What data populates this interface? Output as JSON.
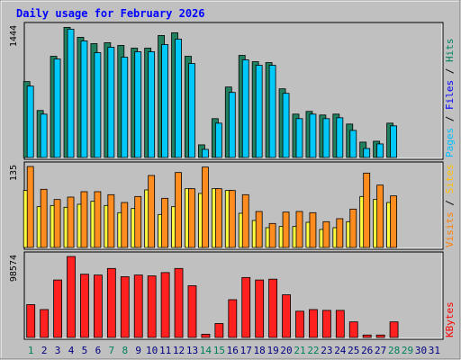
{
  "chart_data": {
    "type": "bar",
    "title": "Daily usage for February 2026",
    "days": [
      "1",
      "2",
      "3",
      "4",
      "5",
      "6",
      "7",
      "8",
      "9",
      "10",
      "11",
      "12",
      "13",
      "14",
      "15",
      "16",
      "17",
      "18",
      "19",
      "20",
      "21",
      "22",
      "23",
      "24",
      "25",
      "26",
      "27",
      "28",
      "29",
      "30",
      "31"
    ],
    "weekend_days": [
      "1",
      "7",
      "8",
      "14",
      "15",
      "21",
      "22",
      "28",
      "29"
    ],
    "panels": [
      {
        "name": "hits-files-pages",
        "max_label": "1444",
        "max": 1444,
        "legend": [
          {
            "text": "Hits",
            "color": "#00805c"
          },
          {
            "text": "Files",
            "color": "#0000ff"
          },
          {
            "text": "Pages",
            "color": "#00c0ff"
          }
        ],
        "series": [
          {
            "name": "Hits",
            "color": "#208060",
            "values": [
              840,
              520,
              1120,
              1440,
              1330,
              1260,
              1270,
              1240,
              1210,
              1210,
              1350,
              1380,
              1120,
              140,
              430,
              780,
              1130,
              1060,
              1050,
              760,
              480,
              510,
              470,
              480,
              370,
              170,
              180,
              380
            ]
          },
          {
            "name": "Pages",
            "color": "#00c8f8",
            "values": [
              790,
              480,
              1090,
              1420,
              1290,
              1160,
              1220,
              1110,
              1170,
              1170,
              1250,
              1310,
              1040,
              90,
              380,
              720,
              1080,
              1020,
              1020,
              710,
              430,
              480,
              430,
              440,
              300,
              100,
              150,
              350
            ]
          }
        ]
      },
      {
        "name": "sites-visits",
        "max_label": "135",
        "max": 135,
        "legend": [
          {
            "text": "Sites",
            "color": "#ffc000"
          },
          {
            "text": "Visits",
            "color": "#ff8000"
          }
        ],
        "series": [
          {
            "name": "Sites",
            "color": "#ffff40",
            "values": [
              95,
              68,
              70,
              67,
              72,
              77,
              70,
              58,
              65,
              96,
              55,
              68,
              98,
              90,
              98,
              95,
              57,
              45,
              33,
              35,
              35,
              42,
              30,
              33,
              43,
              85,
              80,
              75
            ]
          },
          {
            "name": "Visits",
            "color": "#ff8c1e",
            "values": [
              135,
              97,
              80,
              84,
              93,
              93,
              88,
              75,
              85,
              120,
              82,
              125,
              98,
              134,
              98,
              95,
              88,
              60,
              40,
              59,
              60,
              58,
              43,
              48,
              64,
              124,
              104,
              86
            ]
          }
        ]
      },
      {
        "name": "kbytes",
        "max_label": "98574",
        "max": 98574,
        "legend": [
          {
            "text": "KBytes",
            "color": "#ff0000"
          }
        ],
        "series": [
          {
            "name": "KBytes",
            "color": "#ff2020",
            "values": [
              40000,
              34000,
              70000,
              98574,
              77000,
              76000,
              84000,
              74000,
              76000,
              75000,
              79000,
              84000,
              63000,
              4000,
              17000,
              46000,
              73000,
              70000,
              71000,
              52000,
              32000,
              34000,
              33000,
              33000,
              19000,
              3000,
              3000,
              19000
            ]
          }
        ]
      }
    ]
  },
  "colors": {
    "background": "#c0c0c0",
    "title": "#0000ff",
    "weekday_tick": "#000080",
    "weekend_tick": "#00805c"
  }
}
